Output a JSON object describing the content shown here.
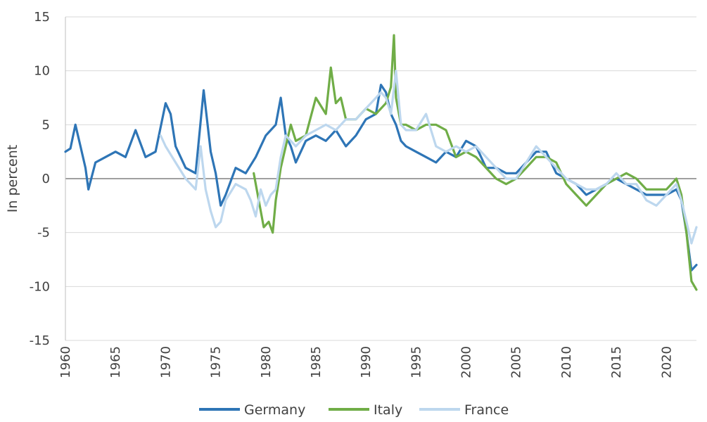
{
  "chart_data": {
    "type": "line",
    "title": "",
    "xlabel": "",
    "ylabel": "In percent",
    "xlim": [
      1960,
      2023
    ],
    "ylim": [
      -15,
      15
    ],
    "x_ticks": [
      1960,
      1965,
      1970,
      1975,
      1980,
      1985,
      1990,
      1995,
      2000,
      2005,
      2010,
      2015,
      2020
    ],
    "y_ticks": [
      15,
      10,
      5,
      0,
      -5,
      -10,
      -15
    ],
    "grid": true,
    "legend": "bottom",
    "series": [
      {
        "name": "Germany",
        "color": "#2e75b6",
        "x": [
          1960,
          1960.5,
          1961,
          1961.5,
          1962,
          1962.3,
          1963,
          1964,
          1965,
          1966,
          1967,
          1968,
          1969,
          1970,
          1970.5,
          1971,
          1972,
          1973,
          1973.8,
          1974.5,
          1975,
          1975.5,
          1976,
          1977,
          1978,
          1979,
          1980,
          1981,
          1981.5,
          1982,
          1982.5,
          1983,
          1984,
          1985,
          1986,
          1987,
          1988,
          1989,
          1990,
          1991,
          1991.5,
          1992,
          1992.5,
          1993,
          1993.5,
          1994,
          1995,
          1996,
          1997,
          1998,
          1999,
          2000,
          2001,
          2002,
          2003,
          2004,
          2005,
          2006,
          2007,
          2008,
          2009,
          2010,
          2011,
          2012,
          2013,
          2014,
          2015,
          2016,
          2017,
          2018,
          2019,
          2020,
          2021,
          2021.5,
          2022,
          2022.5,
          2023
        ],
        "y": [
          2.5,
          2.8,
          5.0,
          3.0,
          1.0,
          -1.0,
          1.5,
          2.0,
          2.5,
          2.0,
          4.5,
          2.0,
          2.5,
          7.0,
          6.0,
          3.0,
          1.0,
          0.5,
          8.2,
          2.5,
          0.5,
          -2.5,
          -1.5,
          1.0,
          0.5,
          2.0,
          4.0,
          5.0,
          7.5,
          4.0,
          3.0,
          1.5,
          3.5,
          4.0,
          3.5,
          4.5,
          3.0,
          4.0,
          5.5,
          6.0,
          8.7,
          8.0,
          6.0,
          5.0,
          3.5,
          3.0,
          2.5,
          2.0,
          1.5,
          2.5,
          2.0,
          3.5,
          3.0,
          1.0,
          1.0,
          0.5,
          0.5,
          1.5,
          2.5,
          2.5,
          0.5,
          0.0,
          -0.5,
          -1.5,
          -1.0,
          -0.5,
          0.0,
          -0.5,
          -1.0,
          -1.5,
          -1.5,
          -1.5,
          -1.0,
          -2.0,
          -5.0,
          -8.5,
          -8.0
        ]
      },
      {
        "name": "Italy",
        "color": "#70ad47",
        "x": [
          1978.8,
          1979.3,
          1979.8,
          1980.3,
          1980.7,
          1981,
          1981.5,
          1982,
          1982.5,
          1983,
          1984,
          1985,
          1986,
          1986.5,
          1987,
          1987.5,
          1988,
          1989,
          1990,
          1991,
          1992,
          1992.5,
          1992.8,
          1993,
          1993.5,
          1994,
          1995,
          1996,
          1997,
          1998,
          1999,
          2000,
          2001,
          2002,
          2003,
          2004,
          2005,
          2006,
          2007,
          2008,
          2009,
          2010,
          2011,
          2012,
          2013,
          2014,
          2015,
          2016,
          2017,
          2018,
          2019,
          2020,
          2021,
          2021.5,
          2022,
          2022.5,
          2023
        ],
        "y": [
          0.5,
          -2.0,
          -4.5,
          -4.0,
          -5.0,
          -2.0,
          1.0,
          3.0,
          5.0,
          3.5,
          4.0,
          7.5,
          6.0,
          10.3,
          7.0,
          7.5,
          5.5,
          5.5,
          6.5,
          6.0,
          7.0,
          8.5,
          13.3,
          7.5,
          5.0,
          5.0,
          4.5,
          5.0,
          5.0,
          4.5,
          2.0,
          2.5,
          2.0,
          1.0,
          0.0,
          -0.5,
          0.0,
          1.0,
          2.0,
          2.0,
          1.5,
          -0.5,
          -1.5,
          -2.5,
          -1.5,
          -0.5,
          0.0,
          0.5,
          0.0,
          -1.0,
          -1.0,
          -1.0,
          0.0,
          -1.5,
          -5.0,
          -9.5,
          -10.3
        ]
      },
      {
        "name": "France",
        "color": "#bdd7ee",
        "x": [
          1969.5,
          1970,
          1971,
          1972,
          1973,
          1973.5,
          1974,
          1974.5,
          1975,
          1975.5,
          1976,
          1977,
          1978,
          1978.5,
          1979,
          1979.5,
          1980,
          1980.5,
          1981,
          1981.5,
          1982,
          1983,
          1984,
          1985,
          1986,
          1987,
          1988,
          1989,
          1990,
          1991,
          1991.5,
          1992,
          1992.5,
          1993,
          1993.5,
          1994,
          1995,
          1996,
          1997,
          1998,
          1999,
          2000,
          2001,
          2002,
          2003,
          2004,
          2005,
          2006,
          2007,
          2008,
          2009,
          2010,
          2011,
          2012,
          2013,
          2014,
          2015,
          2016,
          2017,
          2018,
          2019,
          2020,
          2021,
          2021.5,
          2022,
          2022.5,
          2023
        ],
        "y": [
          4.0,
          3.0,
          1.5,
          0.0,
          -1.0,
          3.0,
          -1.0,
          -3.0,
          -4.5,
          -4.0,
          -2.0,
          -0.5,
          -1.0,
          -2.0,
          -3.5,
          -1.0,
          -2.5,
          -1.5,
          -1.0,
          2.0,
          4.0,
          3.0,
          4.0,
          4.5,
          5.0,
          4.5,
          5.5,
          5.5,
          6.5,
          7.5,
          8.0,
          7.5,
          6.0,
          10.0,
          5.0,
          4.5,
          4.5,
          6.0,
          3.0,
          2.5,
          3.0,
          2.5,
          3.0,
          2.0,
          1.0,
          0.0,
          0.0,
          1.5,
          3.0,
          2.0,
          1.0,
          0.0,
          -0.5,
          -1.0,
          -1.0,
          -0.5,
          0.5,
          -0.5,
          -0.5,
          -2.0,
          -2.5,
          -1.5,
          -0.5,
          -2.0,
          -4.0,
          -6.0,
          -4.5
        ]
      }
    ]
  }
}
